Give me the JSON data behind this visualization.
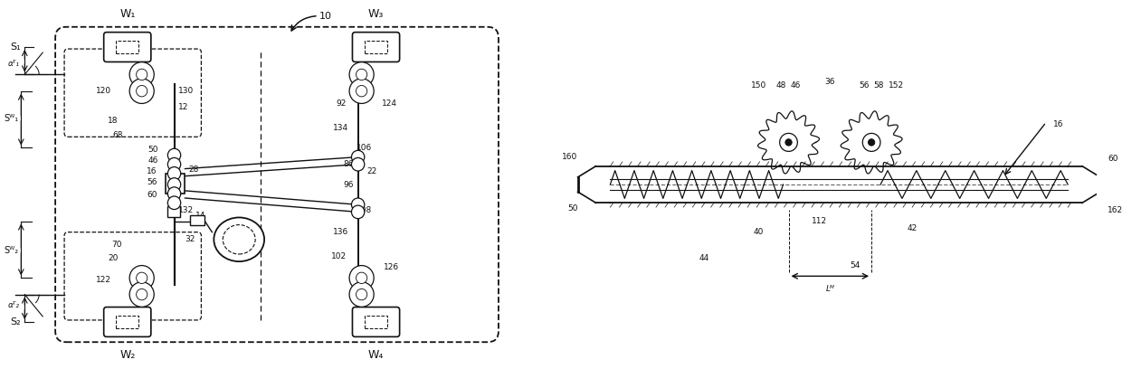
{
  "bg_color": "#ffffff",
  "line_color": "#111111",
  "fig_width": 12.4,
  "fig_height": 4.08,
  "dpi": 100,
  "xlim": [
    0,
    3.04
  ],
  "ylim": [
    0,
    1.0
  ]
}
